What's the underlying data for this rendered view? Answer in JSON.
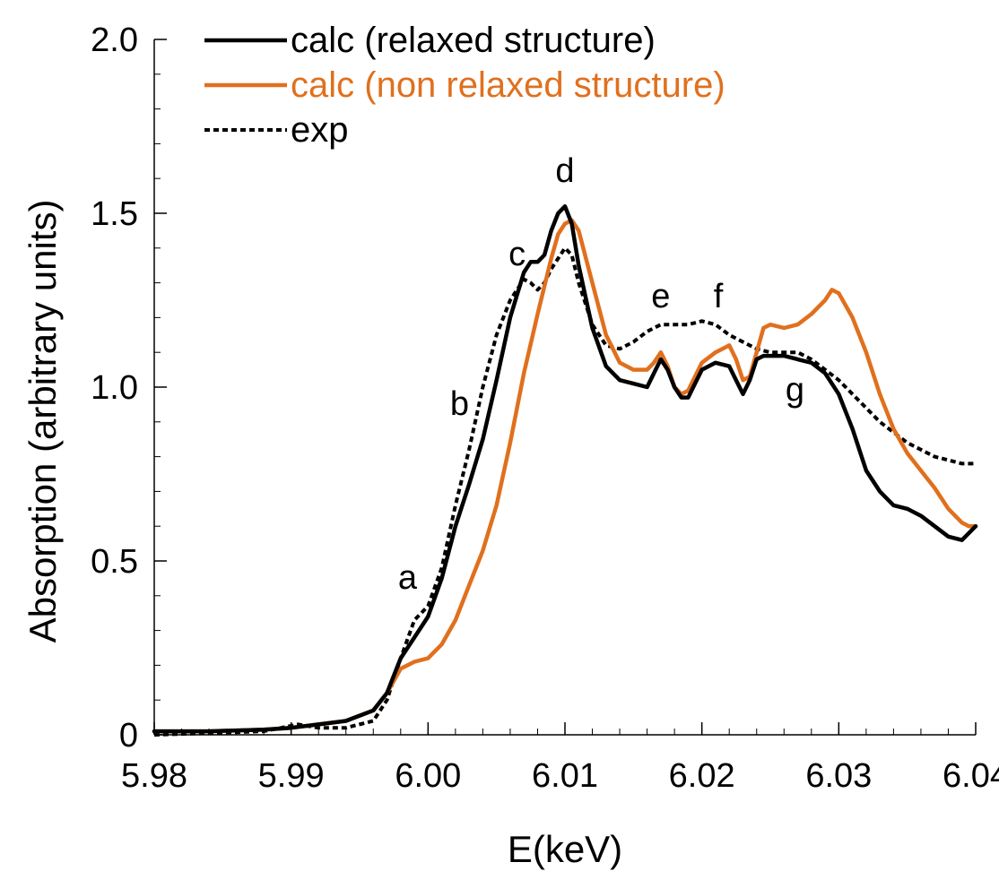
{
  "chart_data": {
    "type": "line",
    "title": "",
    "xlabel": "E(keV)",
    "ylabel": "Absorption (arbitrary units)",
    "xlim": [
      5.98,
      6.04
    ],
    "ylim": [
      0,
      2.0
    ],
    "grid": false,
    "legend_position": "top-left",
    "xticks": [
      5.98,
      5.99,
      6.0,
      6.01,
      6.02,
      6.03,
      6.04
    ],
    "xtick_labels": [
      "5.98",
      "5.99",
      "6.00",
      "6.01",
      "6.02",
      "6.03",
      "6.04"
    ],
    "yticks": [
      0,
      0.5,
      1.0,
      1.5,
      2.0
    ],
    "ytick_labels": [
      "0",
      "0.5",
      "1.0",
      "1.5",
      "2.0"
    ],
    "series": [
      {
        "name": "calc (relaxed structure)",
        "color": "#000000",
        "dash": "solid",
        "x": [
          5.98,
          5.984,
          5.988,
          5.99,
          5.992,
          5.994,
          5.996,
          5.997,
          5.998,
          5.999,
          6.0,
          6.001,
          6.002,
          6.003,
          6.004,
          6.005,
          6.006,
          6.007,
          6.0075,
          6.008,
          6.0085,
          6.009,
          6.0095,
          6.01,
          6.0105,
          6.011,
          6.012,
          6.013,
          6.014,
          6.015,
          6.016,
          6.0165,
          6.017,
          6.0175,
          6.018,
          6.0185,
          6.019,
          6.0195,
          6.02,
          6.021,
          6.022,
          6.0225,
          6.023,
          6.0235,
          6.024,
          6.0245,
          6.025,
          6.026,
          6.027,
          6.028,
          6.029,
          6.03,
          6.031,
          6.032,
          6.033,
          6.034,
          6.035,
          6.036,
          6.037,
          6.038,
          6.039,
          6.04
        ],
        "values": [
          0.01,
          0.01,
          0.015,
          0.02,
          0.03,
          0.04,
          0.07,
          0.12,
          0.22,
          0.28,
          0.34,
          0.45,
          0.6,
          0.72,
          0.85,
          1.02,
          1.2,
          1.33,
          1.36,
          1.36,
          1.38,
          1.45,
          1.5,
          1.52,
          1.47,
          1.35,
          1.17,
          1.06,
          1.02,
          1.01,
          1.0,
          1.04,
          1.08,
          1.05,
          1.0,
          0.97,
          0.97,
          1.01,
          1.05,
          1.07,
          1.06,
          1.02,
          0.98,
          1.02,
          1.08,
          1.09,
          1.09,
          1.09,
          1.08,
          1.07,
          1.04,
          0.98,
          0.88,
          0.76,
          0.7,
          0.66,
          0.65,
          0.63,
          0.6,
          0.57,
          0.56,
          0.6
        ]
      },
      {
        "name": "calc (non relaxed structure)",
        "color": "#e0701e",
        "dash": "solid",
        "x": [
          5.98,
          5.984,
          5.988,
          5.99,
          5.992,
          5.994,
          5.996,
          5.997,
          5.998,
          5.999,
          6.0,
          6.001,
          6.002,
          6.003,
          6.004,
          6.005,
          6.006,
          6.007,
          6.008,
          6.009,
          6.0095,
          6.01,
          6.0105,
          6.011,
          6.012,
          6.013,
          6.014,
          6.015,
          6.016,
          6.0165,
          6.017,
          6.0175,
          6.018,
          6.0185,
          6.019,
          6.0195,
          6.02,
          6.021,
          6.022,
          6.0225,
          6.023,
          6.0235,
          6.024,
          6.0245,
          6.025,
          6.026,
          6.027,
          6.028,
          6.029,
          6.0295,
          6.03,
          6.031,
          6.032,
          6.033,
          6.034,
          6.035,
          6.036,
          6.037,
          6.038,
          6.039,
          6.0395,
          6.04
        ],
        "values": [
          0.01,
          0.01,
          0.015,
          0.02,
          0.03,
          0.04,
          0.07,
          0.12,
          0.19,
          0.21,
          0.22,
          0.26,
          0.33,
          0.43,
          0.53,
          0.66,
          0.84,
          1.04,
          1.21,
          1.37,
          1.44,
          1.47,
          1.48,
          1.45,
          1.3,
          1.15,
          1.07,
          1.05,
          1.05,
          1.07,
          1.1,
          1.06,
          1.0,
          0.98,
          0.99,
          1.03,
          1.07,
          1.1,
          1.12,
          1.08,
          1.02,
          1.03,
          1.1,
          1.17,
          1.18,
          1.17,
          1.18,
          1.21,
          1.25,
          1.28,
          1.27,
          1.2,
          1.1,
          0.98,
          0.88,
          0.81,
          0.76,
          0.71,
          0.65,
          0.61,
          0.6,
          0.6
        ]
      },
      {
        "name": "exp",
        "color": "#000000",
        "dash": "dashed",
        "x": [
          5.98,
          5.984,
          5.988,
          5.9905,
          5.992,
          5.994,
          5.996,
          5.997,
          5.998,
          5.999,
          6.0,
          6.001,
          6.002,
          6.003,
          6.004,
          6.005,
          6.006,
          6.007,
          6.0075,
          6.008,
          6.0085,
          6.009,
          6.0095,
          6.01,
          6.0105,
          6.011,
          6.012,
          6.013,
          6.014,
          6.015,
          6.016,
          6.017,
          6.018,
          6.019,
          6.02,
          6.021,
          6.022,
          6.023,
          6.024,
          6.025,
          6.026,
          6.027,
          6.028,
          6.029,
          6.03,
          6.031,
          6.032,
          6.033,
          6.034,
          6.035,
          6.036,
          6.037,
          6.038,
          6.039,
          6.04
        ],
        "values": [
          0.0,
          0.005,
          0.01,
          0.03,
          0.02,
          0.02,
          0.04,
          0.1,
          0.22,
          0.33,
          0.37,
          0.48,
          0.66,
          0.82,
          1.0,
          1.15,
          1.25,
          1.31,
          1.3,
          1.28,
          1.3,
          1.34,
          1.37,
          1.4,
          1.38,
          1.3,
          1.18,
          1.12,
          1.11,
          1.13,
          1.16,
          1.18,
          1.18,
          1.18,
          1.19,
          1.18,
          1.15,
          1.13,
          1.11,
          1.1,
          1.1,
          1.1,
          1.08,
          1.05,
          1.02,
          0.98,
          0.94,
          0.9,
          0.87,
          0.84,
          0.82,
          0.8,
          0.79,
          0.78,
          0.78
        ]
      }
    ],
    "annotations": [
      {
        "text": "a",
        "x": 5.9985,
        "y": 0.42
      },
      {
        "text": "b",
        "x": 6.0023,
        "y": 0.92
      },
      {
        "text": "c",
        "x": 6.0065,
        "y": 1.35
      },
      {
        "text": "d",
        "x": 6.01,
        "y": 1.59
      },
      {
        "text": "e",
        "x": 6.017,
        "y": 1.23
      },
      {
        "text": "f",
        "x": 6.0212,
        "y": 1.23
      },
      {
        "text": "g",
        "x": 6.0268,
        "y": 0.96
      }
    ]
  }
}
